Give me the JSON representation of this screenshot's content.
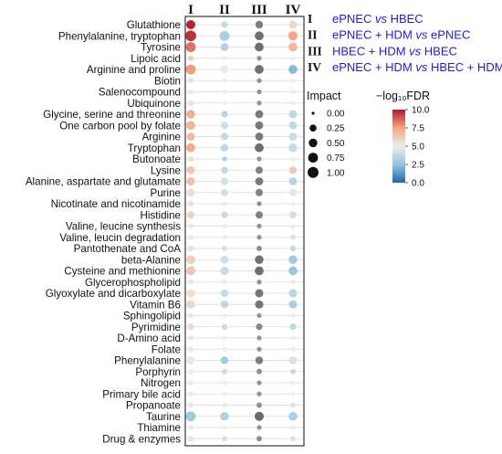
{
  "chart_data": {
    "type": "scatter",
    "subtype": "bubble-heatmap",
    "columns": [
      "I",
      "II",
      "III",
      "IV"
    ],
    "rows": [
      "Glutathione",
      "Phenylalanine, tryptophan",
      "Tyrosine",
      "Lipoic acid",
      "Arginine and proline",
      "Biotin",
      "Salenocompound",
      "Ubiquinone",
      "Glycine, serine and threonine",
      "One carbon pool by folate",
      "Arginine",
      "Tryptophan",
      "Butonoate",
      "Lysine",
      "Alanine, aspartate and glutamate",
      "Purine",
      "Nicotinate and nicotinamide",
      "Histidine",
      "Valine, leucine synthesis",
      "Valine, leucin degradation",
      "Pantothenate and CoA",
      "beta-Alanine",
      "Cysteine and methionine",
      "Glycerophospholipid",
      "Glyoxylate and dicarboxylate",
      "Vitamin B6",
      "Sphingolipid",
      "Pyrimidine",
      "D-Amino acid",
      "Folate",
      "Phenylalanine",
      "Porphyrin",
      "Nitrogen",
      "Primary bile acid",
      "Propanoate",
      "Taurine",
      "Thiamine",
      "Drug & enzymes"
    ],
    "series": [
      {
        "name": "I",
        "fdr": [
          9.8,
          9.6,
          8.4,
          6.2,
          7.6,
          5.5,
          5.2,
          5.4,
          7.2,
          7.0,
          6.8,
          7.3,
          5.6,
          6.4,
          6.6,
          5.6,
          5.6,
          6.0,
          5.3,
          5.2,
          5.4,
          6.1,
          6.4,
          5.3,
          5.6,
          5.8,
          5.2,
          5.7,
          5.3,
          5.2,
          4.8,
          5.1,
          5.2,
          5.1,
          5.2,
          2.9,
          5.2,
          5.3
        ],
        "impact": [
          0.6,
          0.95,
          0.75,
          0.1,
          0.75,
          0.1,
          0.1,
          0.15,
          0.5,
          0.55,
          0.4,
          0.55,
          0.1,
          0.4,
          0.45,
          0.35,
          0.1,
          0.3,
          0.1,
          0.1,
          0.15,
          0.55,
          0.6,
          0.1,
          0.45,
          0.5,
          0.1,
          0.25,
          0.1,
          0.1,
          0.45,
          0.1,
          0.1,
          0.1,
          0.15,
          0.75,
          0.1,
          0.15
        ]
      },
      {
        "name": "II",
        "fdr": [
          3.9,
          3.1,
          3.4,
          5.0,
          5.1,
          5.0,
          5.0,
          5.0,
          3.5,
          4.1,
          3.8,
          3.7,
          3.0,
          3.8,
          4.2,
          4.1,
          5.0,
          3.9,
          5.0,
          5.0,
          4.3,
          4.2,
          3.9,
          4.8,
          3.9,
          3.7,
          5.0,
          4.0,
          5.0,
          5.0,
          2.9,
          4.0,
          5.0,
          5.0,
          4.8,
          3.3,
          5.0,
          4.3
        ],
        "impact": [
          0.2,
          0.75,
          0.4,
          0.05,
          0.45,
          0.05,
          0.05,
          0.05,
          0.2,
          0.3,
          0.3,
          0.35,
          0.05,
          0.25,
          0.3,
          0.25,
          0.05,
          0.2,
          0.05,
          0.05,
          0.1,
          0.4,
          0.45,
          0.05,
          0.3,
          0.35,
          0.05,
          0.15,
          0.05,
          0.05,
          0.35,
          0.1,
          0.05,
          0.05,
          0.05,
          0.5,
          0.05,
          0.1
        ]
      },
      {
        "name": "III",
        "fdr": [
          5.3,
          5.2,
          5.2,
          5.0,
          5.2,
          5.0,
          5.0,
          5.0,
          5.2,
          5.2,
          5.2,
          5.3,
          5.0,
          5.1,
          5.2,
          5.2,
          5.0,
          5.2,
          5.0,
          5.0,
          5.1,
          5.2,
          5.2,
          5.0,
          5.2,
          5.2,
          5.0,
          5.1,
          5.0,
          5.0,
          5.1,
          5.1,
          5.0,
          5.0,
          5.1,
          5.2,
          5.0,
          5.1
        ],
        "impact": [
          0.35,
          0.55,
          0.55,
          0.05,
          0.55,
          0.05,
          0.05,
          0.05,
          0.4,
          0.4,
          0.4,
          0.55,
          0.05,
          0.3,
          0.4,
          0.3,
          0.05,
          0.3,
          0.05,
          0.05,
          0.1,
          0.5,
          0.55,
          0.05,
          0.45,
          0.45,
          0.05,
          0.2,
          0.05,
          0.05,
          0.35,
          0.1,
          0.05,
          0.05,
          0.1,
          0.6,
          0.05,
          0.1
        ]
      },
      {
        "name": "IV",
        "fdr": [
          5.8,
          7.4,
          6.9,
          5.0,
          2.2,
          5.0,
          5.0,
          5.0,
          3.6,
          3.7,
          4.0,
          3.8,
          5.0,
          6.3,
          3.5,
          4.6,
          5.0,
          4.1,
          5.0,
          4.4,
          3.9,
          2.9,
          2.7,
          5.0,
          3.6,
          3.2,
          5.0,
          3.6,
          5.0,
          5.0,
          4.3,
          3.9,
          5.0,
          5.0,
          4.5,
          3.2,
          5.0,
          4.4
        ],
        "impact": [
          0.35,
          0.65,
          0.55,
          0.05,
          0.55,
          0.05,
          0.05,
          0.05,
          0.4,
          0.4,
          0.4,
          0.5,
          0.05,
          0.3,
          0.4,
          0.3,
          0.05,
          0.25,
          0.05,
          0.1,
          0.15,
          0.5,
          0.55,
          0.05,
          0.45,
          0.45,
          0.05,
          0.2,
          0.05,
          0.05,
          0.4,
          0.1,
          0.05,
          0.05,
          0.1,
          0.55,
          0.05,
          0.1
        ]
      }
    ],
    "legend": {
      "comparisons": [
        {
          "roman": "I",
          "parts": [
            "ePNEC ",
            "vs",
            " HBEC"
          ]
        },
        {
          "roman": "II",
          "parts": [
            "ePNEC + HDM ",
            "vs",
            " ePNEC"
          ]
        },
        {
          "roman": "III",
          "parts": [
            "HBEC + HDM ",
            "vs",
            " HBEC"
          ]
        },
        {
          "roman": "IV",
          "parts": [
            "ePNEC + HDM ",
            "vs",
            " HBEC + HDM"
          ]
        }
      ],
      "impact_title": "Impact",
      "impact_levels": [
        0.0,
        0.25,
        0.5,
        0.75,
        1.0
      ],
      "impact_labels": [
        "0.00",
        "0.25",
        "0.50",
        "0.75",
        "1.00"
      ],
      "fdr_title": "−log₁₀FDR",
      "fdr_range": [
        0,
        10
      ],
      "fdr_ticks": [
        10.0,
        7.5,
        5.0,
        2.5,
        0.0
      ],
      "fdr_tick_labels": [
        "10.0",
        "7.5",
        "5.0",
        "2.5",
        "0.0"
      ]
    },
    "colors": {
      "low": "#2166ac",
      "mid_low": "#92c5de",
      "mid": "#ededed",
      "mid_high": "#f4a582",
      "high": "#b2182b",
      "column_III_gray": "#6b6b6b",
      "legend_text": "#1a1aff"
    },
    "grid": true
  }
}
